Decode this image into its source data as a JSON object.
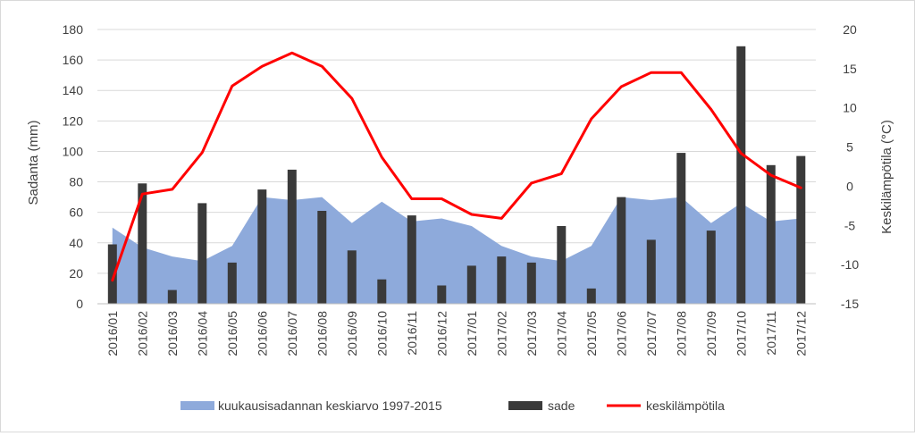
{
  "chart_data": {
    "type": "bar",
    "categories": [
      "2016/01",
      "2016/02",
      "2016/03",
      "2016/04",
      "2016/05",
      "2016/06",
      "2016/07",
      "2016/08",
      "2016/09",
      "2016/10",
      "2016/11",
      "2016/12",
      "2017/01",
      "2017/02",
      "2017/03",
      "2017/04",
      "2017/05",
      "2017/06",
      "2017/07",
      "2017/08",
      "2017/09",
      "2017/10",
      "2017/11",
      "2017/12"
    ],
    "ylabel": "Sadanta (mm)",
    "y2label": "Keskilämpötila (°C)",
    "ylim": [
      0,
      180
    ],
    "y2lim": [
      -15,
      20
    ],
    "yticks": [
      "0",
      "20",
      "40",
      "60",
      "80",
      "100",
      "120",
      "140",
      "160",
      "180"
    ],
    "y2ticks": [
      "-15",
      "-10",
      "-5",
      "0",
      "5",
      "10",
      "15",
      "20"
    ],
    "grid": true,
    "legend_position": "bottom",
    "series": [
      {
        "name": "kuukausisadannan keskiarvo 1997-2015",
        "type": "area",
        "axis": "left",
        "color": "#8eaadb",
        "values": [
          50,
          37,
          31,
          28,
          38,
          70,
          68,
          70,
          53,
          67,
          54,
          56,
          51,
          38,
          31,
          28,
          38,
          70,
          68,
          70,
          53,
          66,
          54,
          56
        ]
      },
      {
        "name": "sade",
        "type": "bar",
        "axis": "left",
        "color": "#3a3a3a",
        "values": [
          39,
          79,
          9,
          66,
          27,
          75,
          88,
          61,
          35,
          16,
          58,
          12,
          25,
          31,
          27,
          51,
          10,
          70,
          42,
          99,
          48,
          169,
          91,
          97
        ]
      },
      {
        "name": "keskilämpötila",
        "type": "line",
        "axis": "right",
        "color": "#ff0000",
        "values": [
          -12,
          -1,
          -0.4,
          4.3,
          12.8,
          15.3,
          17,
          15.3,
          11.2,
          3.7,
          -1.6,
          -1.6,
          -3.6,
          -4.1,
          0.4,
          1.6,
          8.6,
          12.7,
          14.5,
          14.5,
          9.8,
          4.2,
          1.4,
          -0.2
        ]
      }
    ]
  }
}
